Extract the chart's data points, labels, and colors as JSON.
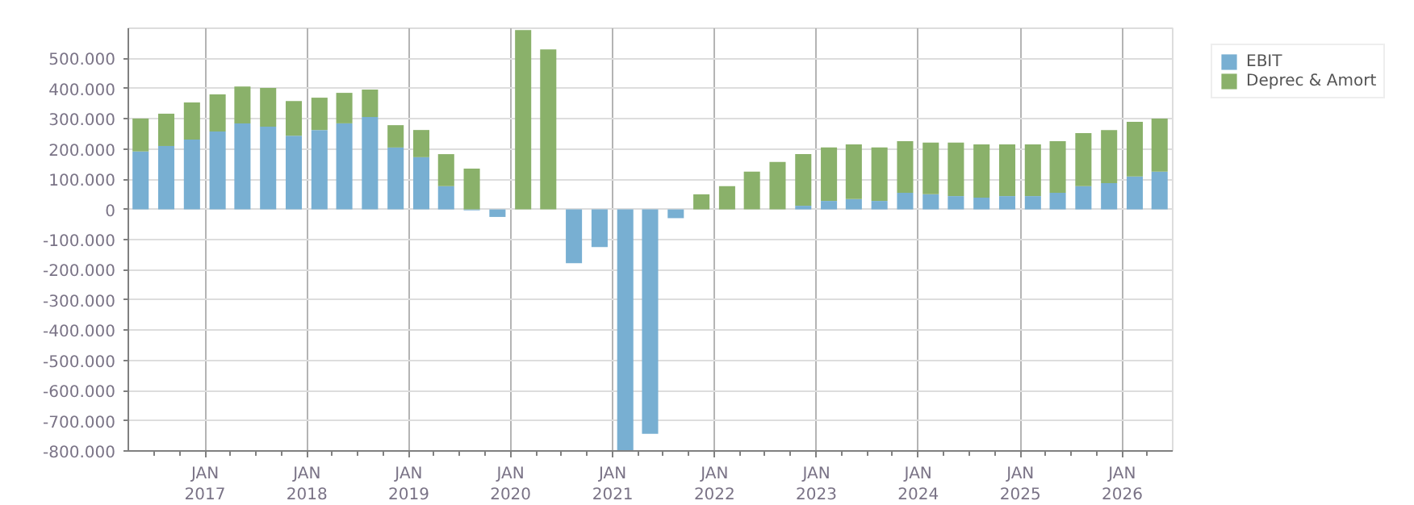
{
  "chart_data": {
    "type": "bar",
    "stacked": true,
    "x": [
      "2016-05-15",
      "2016-08-15",
      "2016-11-15",
      "2017-02-15",
      "2017-05-15",
      "2017-08-15",
      "2017-11-15",
      "2018-02-15",
      "2018-05-15",
      "2018-08-15",
      "2018-11-15",
      "2019-02-15",
      "2019-05-15",
      "2019-08-15",
      "2019-11-15",
      "2020-02-15",
      "2020-05-15",
      "2020-08-15",
      "2020-11-15",
      "2021-02-15",
      "2021-05-15",
      "2021-08-15",
      "2021-11-15",
      "2022-02-15",
      "2022-05-15",
      "2022-08-15",
      "2022-11-15",
      "2023-02-15",
      "2023-05-15",
      "2023-08-15",
      "2023-11-15",
      "2024-02-15",
      "2024-05-15",
      "2024-08-15",
      "2024-11-15",
      "2025-02-15",
      "2025-05-15",
      "2025-08-15",
      "2025-11-15",
      "2026-02-15",
      "2026-05-15"
    ],
    "series": [
      {
        "name": "EBIT",
        "color": "#78afd2",
        "values": [
          192000,
          210000,
          231000,
          258000,
          285000,
          274000,
          244000,
          263000,
          285000,
          306000,
          205000,
          173000,
          77000,
          -3000,
          -25000,
          0,
          0,
          -178000,
          -125000,
          -798000,
          -743000,
          -29000,
          0,
          0,
          0,
          0,
          12000,
          28000,
          34000,
          28000,
          55000,
          50000,
          44000,
          39000,
          44000,
          44000,
          55000,
          77000,
          87000,
          109000,
          125000
        ]
      },
      {
        "name": "Deprec & Amort",
        "color": "#8ab16a",
        "values": [
          109000,
          107000,
          123000,
          123000,
          122000,
          128000,
          115000,
          107000,
          101000,
          91000,
          74000,
          90000,
          106000,
          135000,
          0,
          594000,
          530000,
          0,
          0,
          0,
          0,
          0,
          50000,
          77000,
          125000,
          157000,
          171000,
          177000,
          181000,
          177000,
          171000,
          171000,
          177000,
          176000,
          171000,
          171000,
          171000,
          176000,
          176000,
          181000,
          176000
        ]
      }
    ],
    "xlim": [
      "2016-04-01",
      "2026-07-01"
    ],
    "xticks": [
      {
        "value": "2016-07-01",
        "label": null
      },
      {
        "value": "2016-10-01",
        "label": null
      },
      {
        "value": "2017-01-01",
        "label": "JAN\n2017"
      },
      {
        "value": "2017-04-01",
        "label": null
      },
      {
        "value": "2017-07-01",
        "label": null
      },
      {
        "value": "2017-10-01",
        "label": null
      },
      {
        "value": "2018-01-01",
        "label": "JAN\n2018"
      },
      {
        "value": "2018-04-01",
        "label": null
      },
      {
        "value": "2018-07-01",
        "label": null
      },
      {
        "value": "2018-10-01",
        "label": null
      },
      {
        "value": "2019-01-01",
        "label": "JAN\n2019"
      },
      {
        "value": "2019-04-01",
        "label": null
      },
      {
        "value": "2019-07-01",
        "label": null
      },
      {
        "value": "2019-10-01",
        "label": null
      },
      {
        "value": "2020-01-01",
        "label": "JAN\n2020"
      },
      {
        "value": "2020-04-01",
        "label": null
      },
      {
        "value": "2020-07-01",
        "label": null
      },
      {
        "value": "2020-10-01",
        "label": null
      },
      {
        "value": "2021-01-01",
        "label": "JAN\n2021"
      },
      {
        "value": "2021-04-01",
        "label": null
      },
      {
        "value": "2021-07-01",
        "label": null
      },
      {
        "value": "2021-10-01",
        "label": null
      },
      {
        "value": "2022-01-01",
        "label": "JAN\n2022"
      },
      {
        "value": "2022-04-01",
        "label": null
      },
      {
        "value": "2022-07-01",
        "label": null
      },
      {
        "value": "2022-10-01",
        "label": null
      },
      {
        "value": "2023-01-01",
        "label": "JAN\n2023"
      },
      {
        "value": "2023-04-01",
        "label": null
      },
      {
        "value": "2023-07-01",
        "label": null
      },
      {
        "value": "2023-10-01",
        "label": null
      },
      {
        "value": "2024-01-01",
        "label": "JAN\n2024"
      },
      {
        "value": "2024-04-01",
        "label": null
      },
      {
        "value": "2024-07-01",
        "label": null
      },
      {
        "value": "2024-10-01",
        "label": null
      },
      {
        "value": "2025-01-01",
        "label": "JAN\n2025"
      },
      {
        "value": "2025-04-01",
        "label": null
      },
      {
        "value": "2025-07-01",
        "label": null
      },
      {
        "value": "2025-10-01",
        "label": null
      },
      {
        "value": "2026-01-01",
        "label": "JAN\n2026"
      },
      {
        "value": "2026-04-01",
        "label": null
      }
    ],
    "ylim": [
      -800000,
      600000
    ],
    "yticks": [
      {
        "value": -800000,
        "label": "-800.000"
      },
      {
        "value": -700000,
        "label": "-700.000"
      },
      {
        "value": -600000,
        "label": "-600.000"
      },
      {
        "value": -500000,
        "label": "-500.000"
      },
      {
        "value": -400000,
        "label": "-400.000"
      },
      {
        "value": -300000,
        "label": "-300.000"
      },
      {
        "value": -200000,
        "label": "-200.000"
      },
      {
        "value": -100000,
        "label": "-100.000"
      },
      {
        "value": 0,
        "label": "0"
      },
      {
        "value": 100000,
        "label": "100.000"
      },
      {
        "value": 200000,
        "label": "200.000"
      },
      {
        "value": 300000,
        "label": "300.000"
      },
      {
        "value": 400000,
        "label": "400.000"
      },
      {
        "value": 500000,
        "label": "500.000"
      }
    ],
    "grid": true,
    "legend": "right"
  }
}
